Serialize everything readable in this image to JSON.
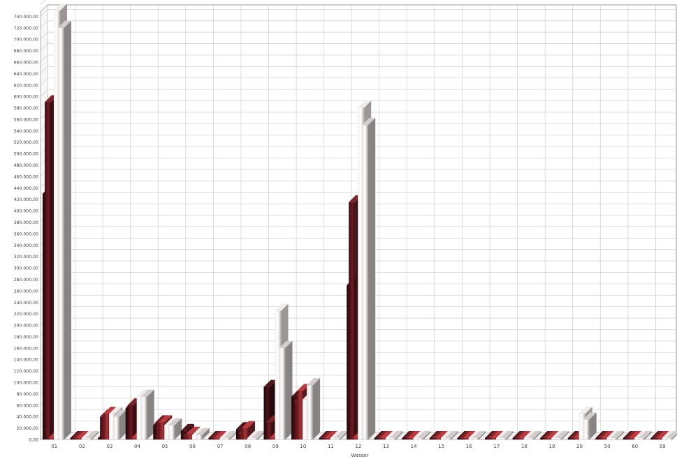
{
  "chart_data": {
    "type": "bar",
    "style": "3d-clustered",
    "xlabel": "Wasser",
    "ylabel": "",
    "ylim": [
      0,
      760000
    ],
    "ytick_step": 20000,
    "ytick_labels": [
      "0,00",
      "20.000,00",
      "40.000,00",
      "60.000,00",
      "80.000,00",
      "100.000,00",
      "120.000,00",
      "140.000,00",
      "160.000,00",
      "180.000,00",
      "200.000,00",
      "220.000,00",
      "240.000,00",
      "260.000,00",
      "280.000,00",
      "300.000,00",
      "320.000,00",
      "340.000,00",
      "360.000,00",
      "380.000,00",
      "400.000,00",
      "420.000,00",
      "440.000,00",
      "460.000,00",
      "480.000,00",
      "500.000,00",
      "520.000,00",
      "540.000,00",
      "560.000,00",
      "580.000,00",
      "600.000,00",
      "620.000,00",
      "640.000,00",
      "660.000,00",
      "680.000,00",
      "700.000,00",
      "720.000,00",
      "740.000,00"
    ],
    "grid": true,
    "legend": "none",
    "categories": [
      "01",
      "02",
      "03",
      "04",
      "05",
      "06",
      "07",
      "08",
      "09",
      "10",
      "11",
      "12",
      "13",
      "14",
      "15",
      "16",
      "17",
      "18",
      "19",
      "20",
      "50",
      "60",
      "99"
    ],
    "series": [
      {
        "color": "#3a0f12",
        "values": [
          430000,
          0,
          0,
          55000,
          25000,
          15000,
          0,
          18000,
          92000,
          75000,
          0,
          270000,
          0,
          0,
          0,
          0,
          0,
          0,
          0,
          0,
          0,
          0,
          0
        ]
      },
      {
        "color": "#5a1a1e",
        "values": [
          590000,
          0,
          40000,
          60000,
          30000,
          5000,
          0,
          10000,
          30000,
          65000,
          0,
          415000,
          0,
          0,
          0,
          0,
          0,
          0,
          0,
          0,
          0,
          0,
          0
        ]
      },
      {
        "color": "#8b2a2e",
        "values": [
          0,
          0,
          45000,
          0,
          30000,
          10000,
          0,
          20000,
          0,
          85000,
          0,
          0,
          0,
          0,
          0,
          0,
          0,
          0,
          0,
          0,
          0,
          0,
          0
        ]
      },
      {
        "color": "#d8d2d2",
        "values": [
          750000,
          0,
          45000,
          75000,
          25000,
          8000,
          0,
          0,
          225000,
          70000,
          0,
          580000,
          0,
          0,
          0,
          0,
          0,
          0,
          0,
          45000,
          0,
          0,
          0
        ]
      },
      {
        "color": "#bdb7b8",
        "values": [
          720000,
          0,
          40000,
          75000,
          25000,
          8000,
          0,
          0,
          160000,
          95000,
          0,
          550000,
          0,
          0,
          0,
          0,
          0,
          0,
          0,
          35000,
          0,
          0,
          0
        ]
      }
    ]
  }
}
